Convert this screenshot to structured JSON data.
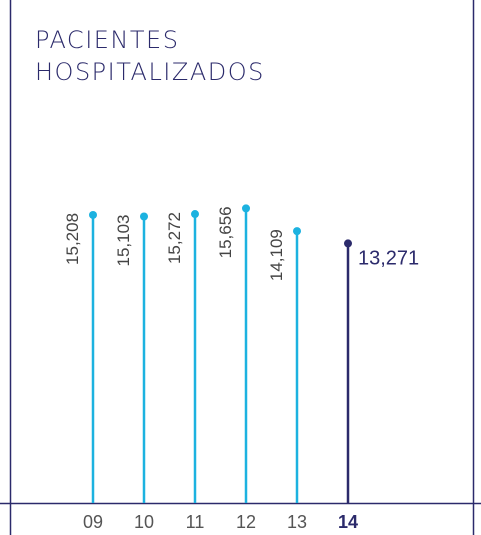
{
  "chart_data": {
    "type": "lollipop",
    "title": "PACIENTES HOSPITALIZADOS",
    "categories": [
      "09",
      "10",
      "11",
      "12",
      "13",
      "14"
    ],
    "values": [
      15208,
      15103,
      15272,
      15656,
      14109,
      13271
    ],
    "value_labels": [
      "15,208",
      "15,103",
      "15,272",
      "15,656",
      "14,109",
      "13,271"
    ],
    "colors": [
      "#1cb2e0",
      "#1cb2e0",
      "#1cb2e0",
      "#1cb2e0",
      "#1cb2e0",
      "#2b2a6b"
    ],
    "ylim": [
      -4400,
      27800
    ]
  }
}
